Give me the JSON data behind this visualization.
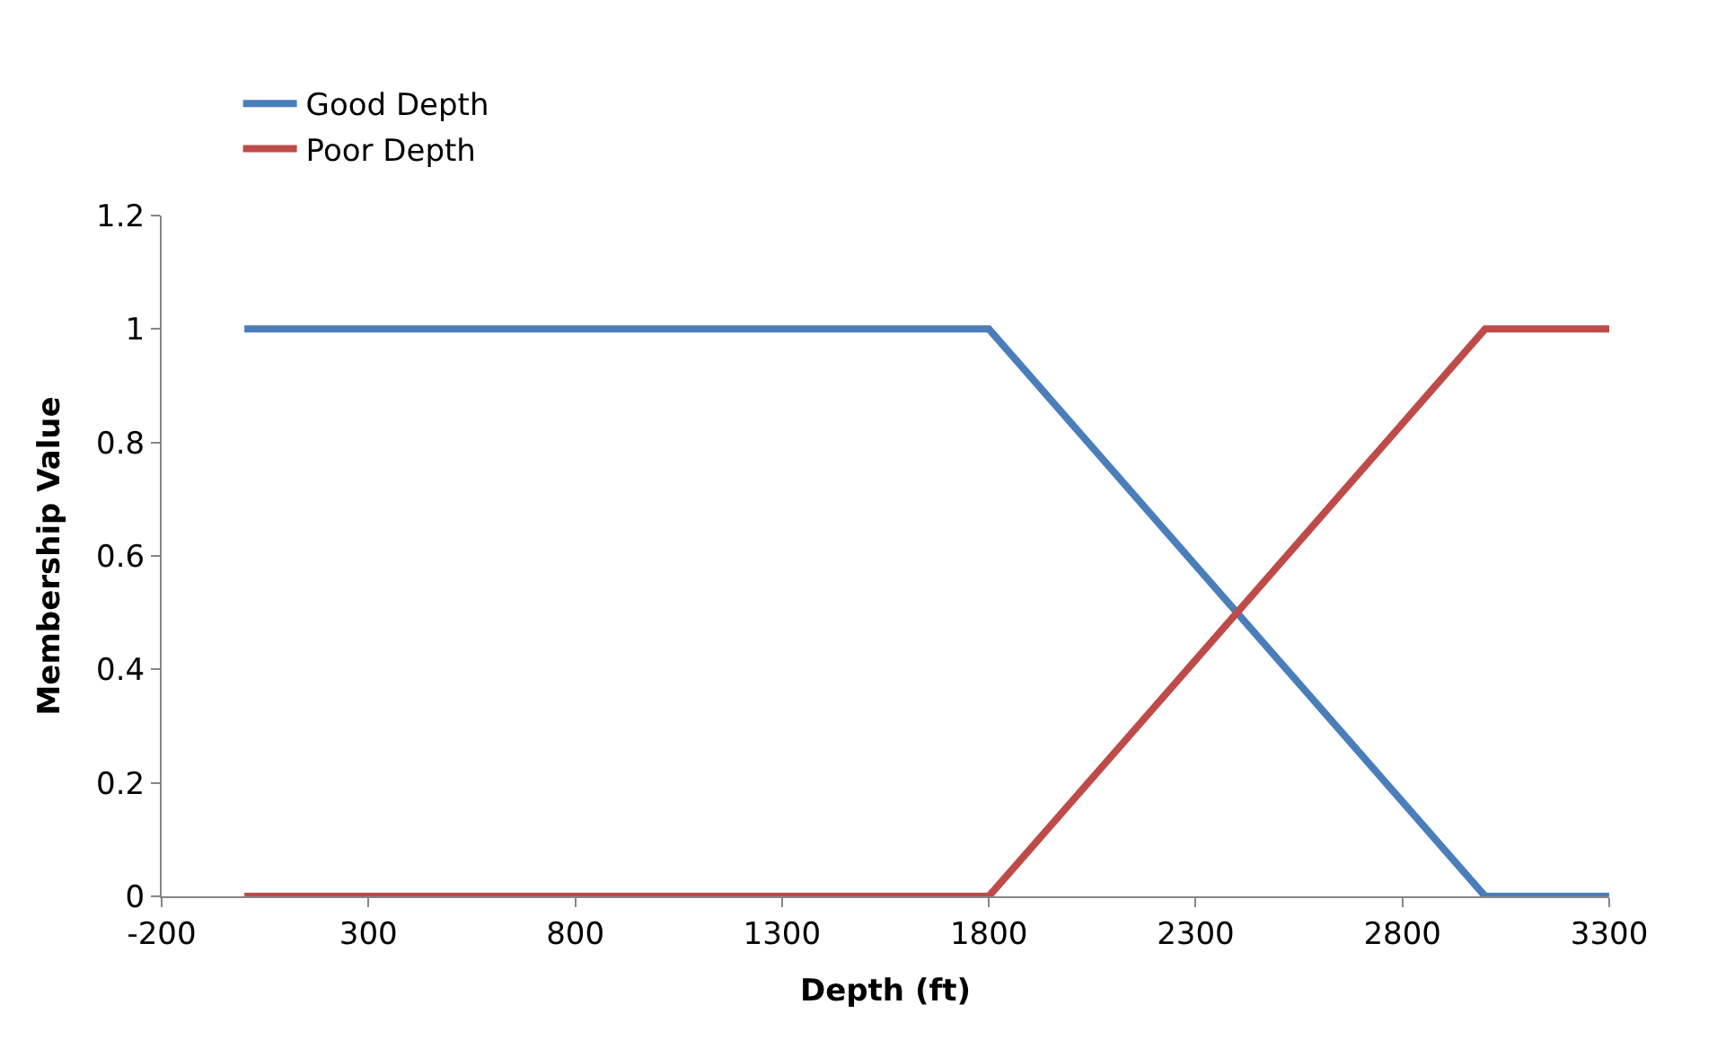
{
  "chart_data": {
    "type": "line",
    "xlabel": "Depth (ft)",
    "ylabel": "Membership Value",
    "series": [
      {
        "name": "Good Depth",
        "color": "#4a7ebb",
        "x": [
          0,
          1800,
          3000,
          3300
        ],
        "values": [
          1,
          1,
          0,
          0
        ]
      },
      {
        "name": "Poor Depth",
        "color": "#be4b48",
        "x": [
          0,
          1800,
          3000,
          3300
        ],
        "values": [
          0,
          0,
          1,
          1
        ]
      }
    ],
    "xlim": [
      -200,
      3300
    ],
    "xticks": [
      -200,
      300,
      800,
      1300,
      1800,
      2300,
      2800,
      3300
    ],
    "ylim": [
      0,
      1.2
    ],
    "yticks": [
      0,
      0.2,
      0.4,
      0.6,
      0.8,
      1,
      1.2
    ],
    "legend": "top left",
    "marker": "none",
    "line_style": "solid"
  }
}
